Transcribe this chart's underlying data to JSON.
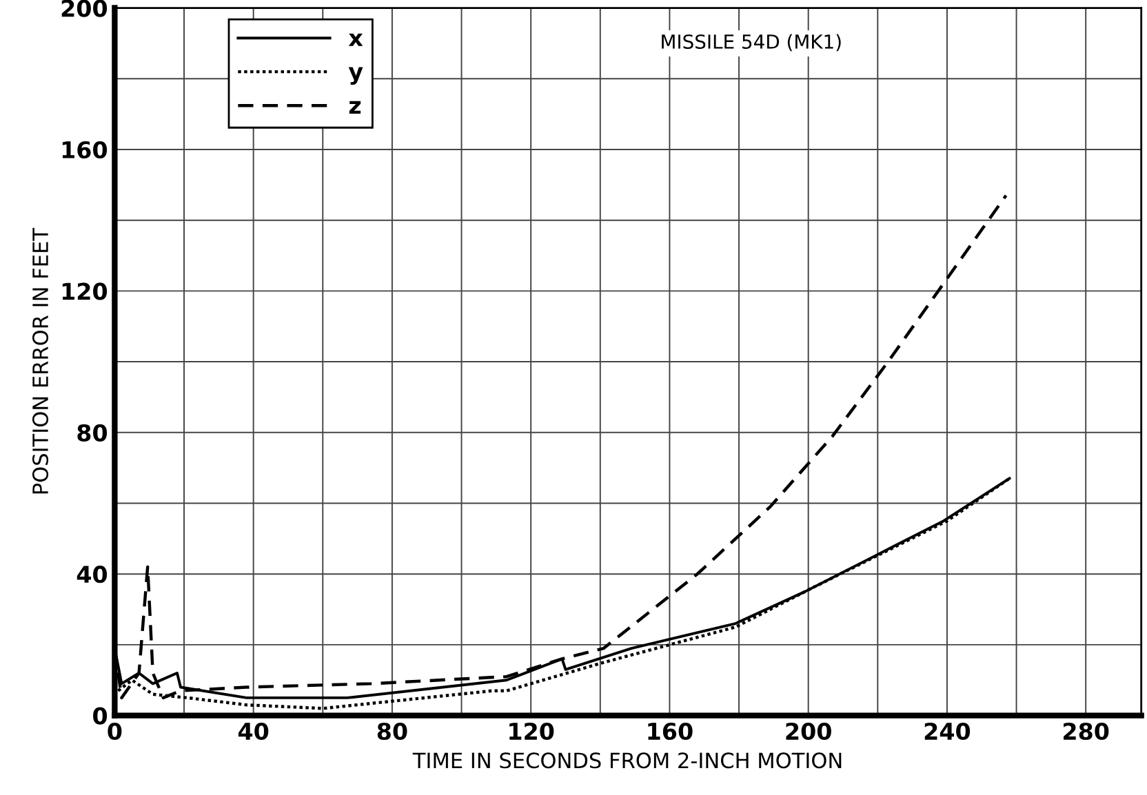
{
  "chart_data": {
    "type": "line",
    "title": "MISSILE 54D (MK1)",
    "xlabel": "TIME IN SECONDS FROM 2-INCH MOTION",
    "ylabel": "POSITION ERROR IN FEET",
    "xlim": [
      0,
      296
    ],
    "ylim": [
      0,
      200
    ],
    "xticks": [
      0,
      {
        "value": 20,
        "label": null
      },
      40,
      {
        "value": 60,
        "label": null
      },
      80,
      {
        "value": 100,
        "label": null
      },
      120,
      {
        "value": 140,
        "label": null
      },
      160,
      {
        "value": 180,
        "label": null
      },
      200,
      {
        "value": 220,
        "label": null
      },
      240,
      {
        "value": 260,
        "label": null
      },
      280
    ],
    "yticks": [
      0,
      {
        "value": 20,
        "label": null
      },
      40,
      {
        "value": 60,
        "label": null
      },
      80,
      {
        "value": 100,
        "label": null
      },
      120,
      {
        "value": 140,
        "label": null
      },
      160,
      {
        "value": 180,
        "label": null
      },
      200
    ],
    "grid": true,
    "legend": "top left",
    "series": [
      {
        "name": "x",
        "color": "#000000",
        "line_style": "solid",
        "x": [
          0,
          2,
          7,
          11,
          18,
          19,
          38,
          67,
          113,
          129,
          130,
          149,
          179,
          199,
          225,
          239,
          258
        ],
        "values": [
          19,
          9,
          12,
          9,
          12,
          8,
          5,
          5,
          10,
          16,
          13,
          19,
          26,
          35,
          48,
          55,
          67
        ]
      },
      {
        "name": "y",
        "color": "#000000",
        "line_style": "dotted",
        "x": [
          1,
          5,
          11,
          21,
          38,
          60,
          109,
          113,
          141,
          179,
          201,
          240,
          258
        ],
        "values": [
          7,
          10,
          6,
          5,
          3,
          2,
          7,
          7,
          15,
          25,
          36,
          55,
          67
        ]
      },
      {
        "name": "z",
        "color": "#000000",
        "line_style": "dashed",
        "x": [
          0,
          2,
          7,
          9.5,
          11,
          14,
          19,
          38,
          74,
          113,
          129,
          141,
          168,
          189,
          207,
          223,
          257
        ],
        "values": [
          19,
          5,
          12,
          42,
          12,
          5,
          7,
          8,
          9,
          11,
          16,
          19,
          40,
          59,
          79,
          100,
          147
        ]
      }
    ]
  }
}
